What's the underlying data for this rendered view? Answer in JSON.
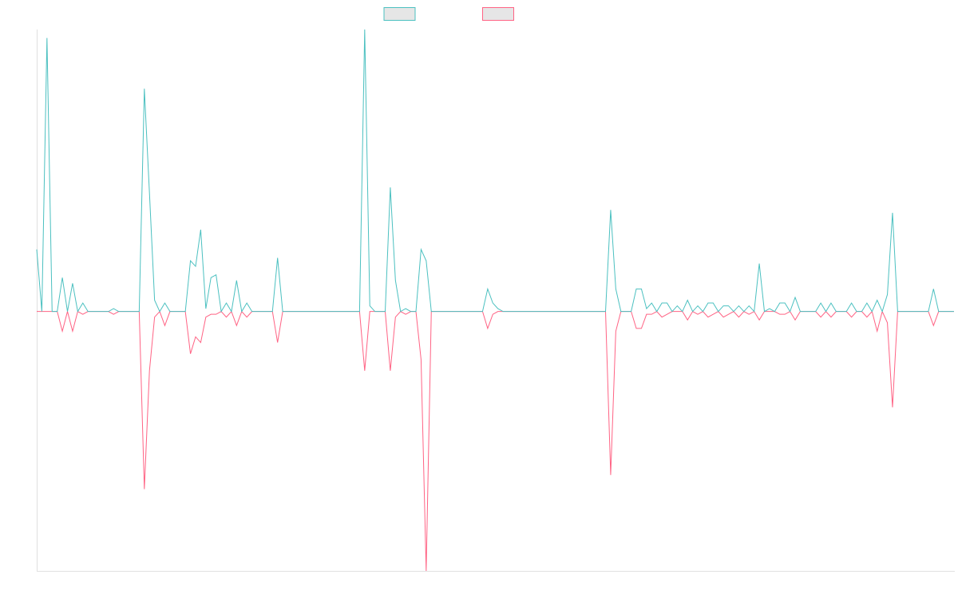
{
  "chart_data": {
    "type": "line",
    "ylim": [
      -92,
      100
    ],
    "series": [
      {
        "color": "#ff6384",
        "values": [
          0,
          0,
          0,
          0,
          0,
          -7,
          0,
          -7,
          0,
          -1,
          0,
          0,
          0,
          0,
          0,
          -1,
          0,
          0,
          0,
          0,
          0,
          -63,
          -21,
          -2,
          0,
          -5,
          0,
          0,
          0,
          0,
          -15,
          -9,
          -11,
          -2,
          -1,
          -1,
          0,
          -2,
          0,
          -5,
          0,
          -2,
          0,
          0,
          0,
          0,
          0,
          -11,
          0,
          0,
          0,
          0,
          0,
          0,
          0,
          0,
          0,
          0,
          0,
          0,
          0,
          0,
          0,
          0,
          -21,
          0,
          0,
          0,
          0,
          -21,
          -2,
          0,
          -1,
          0,
          0,
          -17,
          -92,
          0,
          0,
          0,
          0,
          0,
          0,
          0,
          0,
          0,
          0,
          0,
          -6,
          -1,
          0,
          0,
          0,
          0,
          0,
          0,
          0,
          0,
          0,
          0,
          0,
          0,
          0,
          0,
          0,
          0,
          0,
          0,
          0,
          0,
          0,
          0,
          -58,
          -7,
          0,
          0,
          0,
          -6,
          -6,
          -1,
          -1,
          0,
          -2,
          -1,
          0,
          0,
          0,
          -3,
          0,
          -1,
          0,
          -2,
          -1,
          0,
          -2,
          -1,
          0,
          -2,
          0,
          -1,
          0,
          -3,
          0,
          0,
          0,
          -1,
          -1,
          0,
          -3,
          0,
          0,
          0,
          0,
          -2,
          0,
          -2,
          0,
          0,
          0,
          -2,
          0,
          0,
          -2,
          0,
          -7,
          0,
          -4,
          -34,
          0,
          0,
          0,
          0,
          0,
          0,
          0,
          -5,
          0,
          0,
          0,
          0
        ]
      },
      {
        "color": "#4bc0c0",
        "values": [
          22,
          0,
          97,
          0,
          0,
          12,
          0,
          10,
          0,
          3,
          0,
          0,
          0,
          0,
          0,
          1,
          0,
          0,
          0,
          0,
          0,
          79,
          42,
          4,
          0,
          3,
          0,
          0,
          0,
          0,
          18,
          16,
          29,
          1,
          12,
          13,
          0,
          3,
          0,
          11,
          0,
          3,
          0,
          0,
          0,
          0,
          0,
          19,
          0,
          0,
          0,
          0,
          0,
          0,
          0,
          0,
          0,
          0,
          0,
          0,
          0,
          0,
          0,
          0,
          100,
          2,
          0,
          0,
          0,
          44,
          11,
          0,
          1,
          0,
          0,
          22,
          18,
          0,
          0,
          0,
          0,
          0,
          0,
          0,
          0,
          0,
          0,
          0,
          8,
          3,
          1,
          0,
          0,
          0,
          0,
          0,
          0,
          0,
          0,
          0,
          0,
          0,
          0,
          0,
          0,
          0,
          0,
          0,
          0,
          0,
          0,
          0,
          36,
          8,
          0,
          0,
          0,
          8,
          8,
          1,
          3,
          0,
          3,
          3,
          0,
          2,
          0,
          4,
          0,
          2,
          0,
          3,
          3,
          0,
          2,
          2,
          0,
          2,
          0,
          2,
          0,
          17,
          0,
          1,
          0,
          3,
          3,
          0,
          5,
          0,
          0,
          0,
          0,
          3,
          0,
          3,
          0,
          0,
          0,
          3,
          0,
          0,
          3,
          0,
          4,
          0,
          6,
          35,
          0,
          0,
          0,
          0,
          0,
          0,
          0,
          8,
          0,
          0,
          0,
          0
        ]
      }
    ]
  }
}
